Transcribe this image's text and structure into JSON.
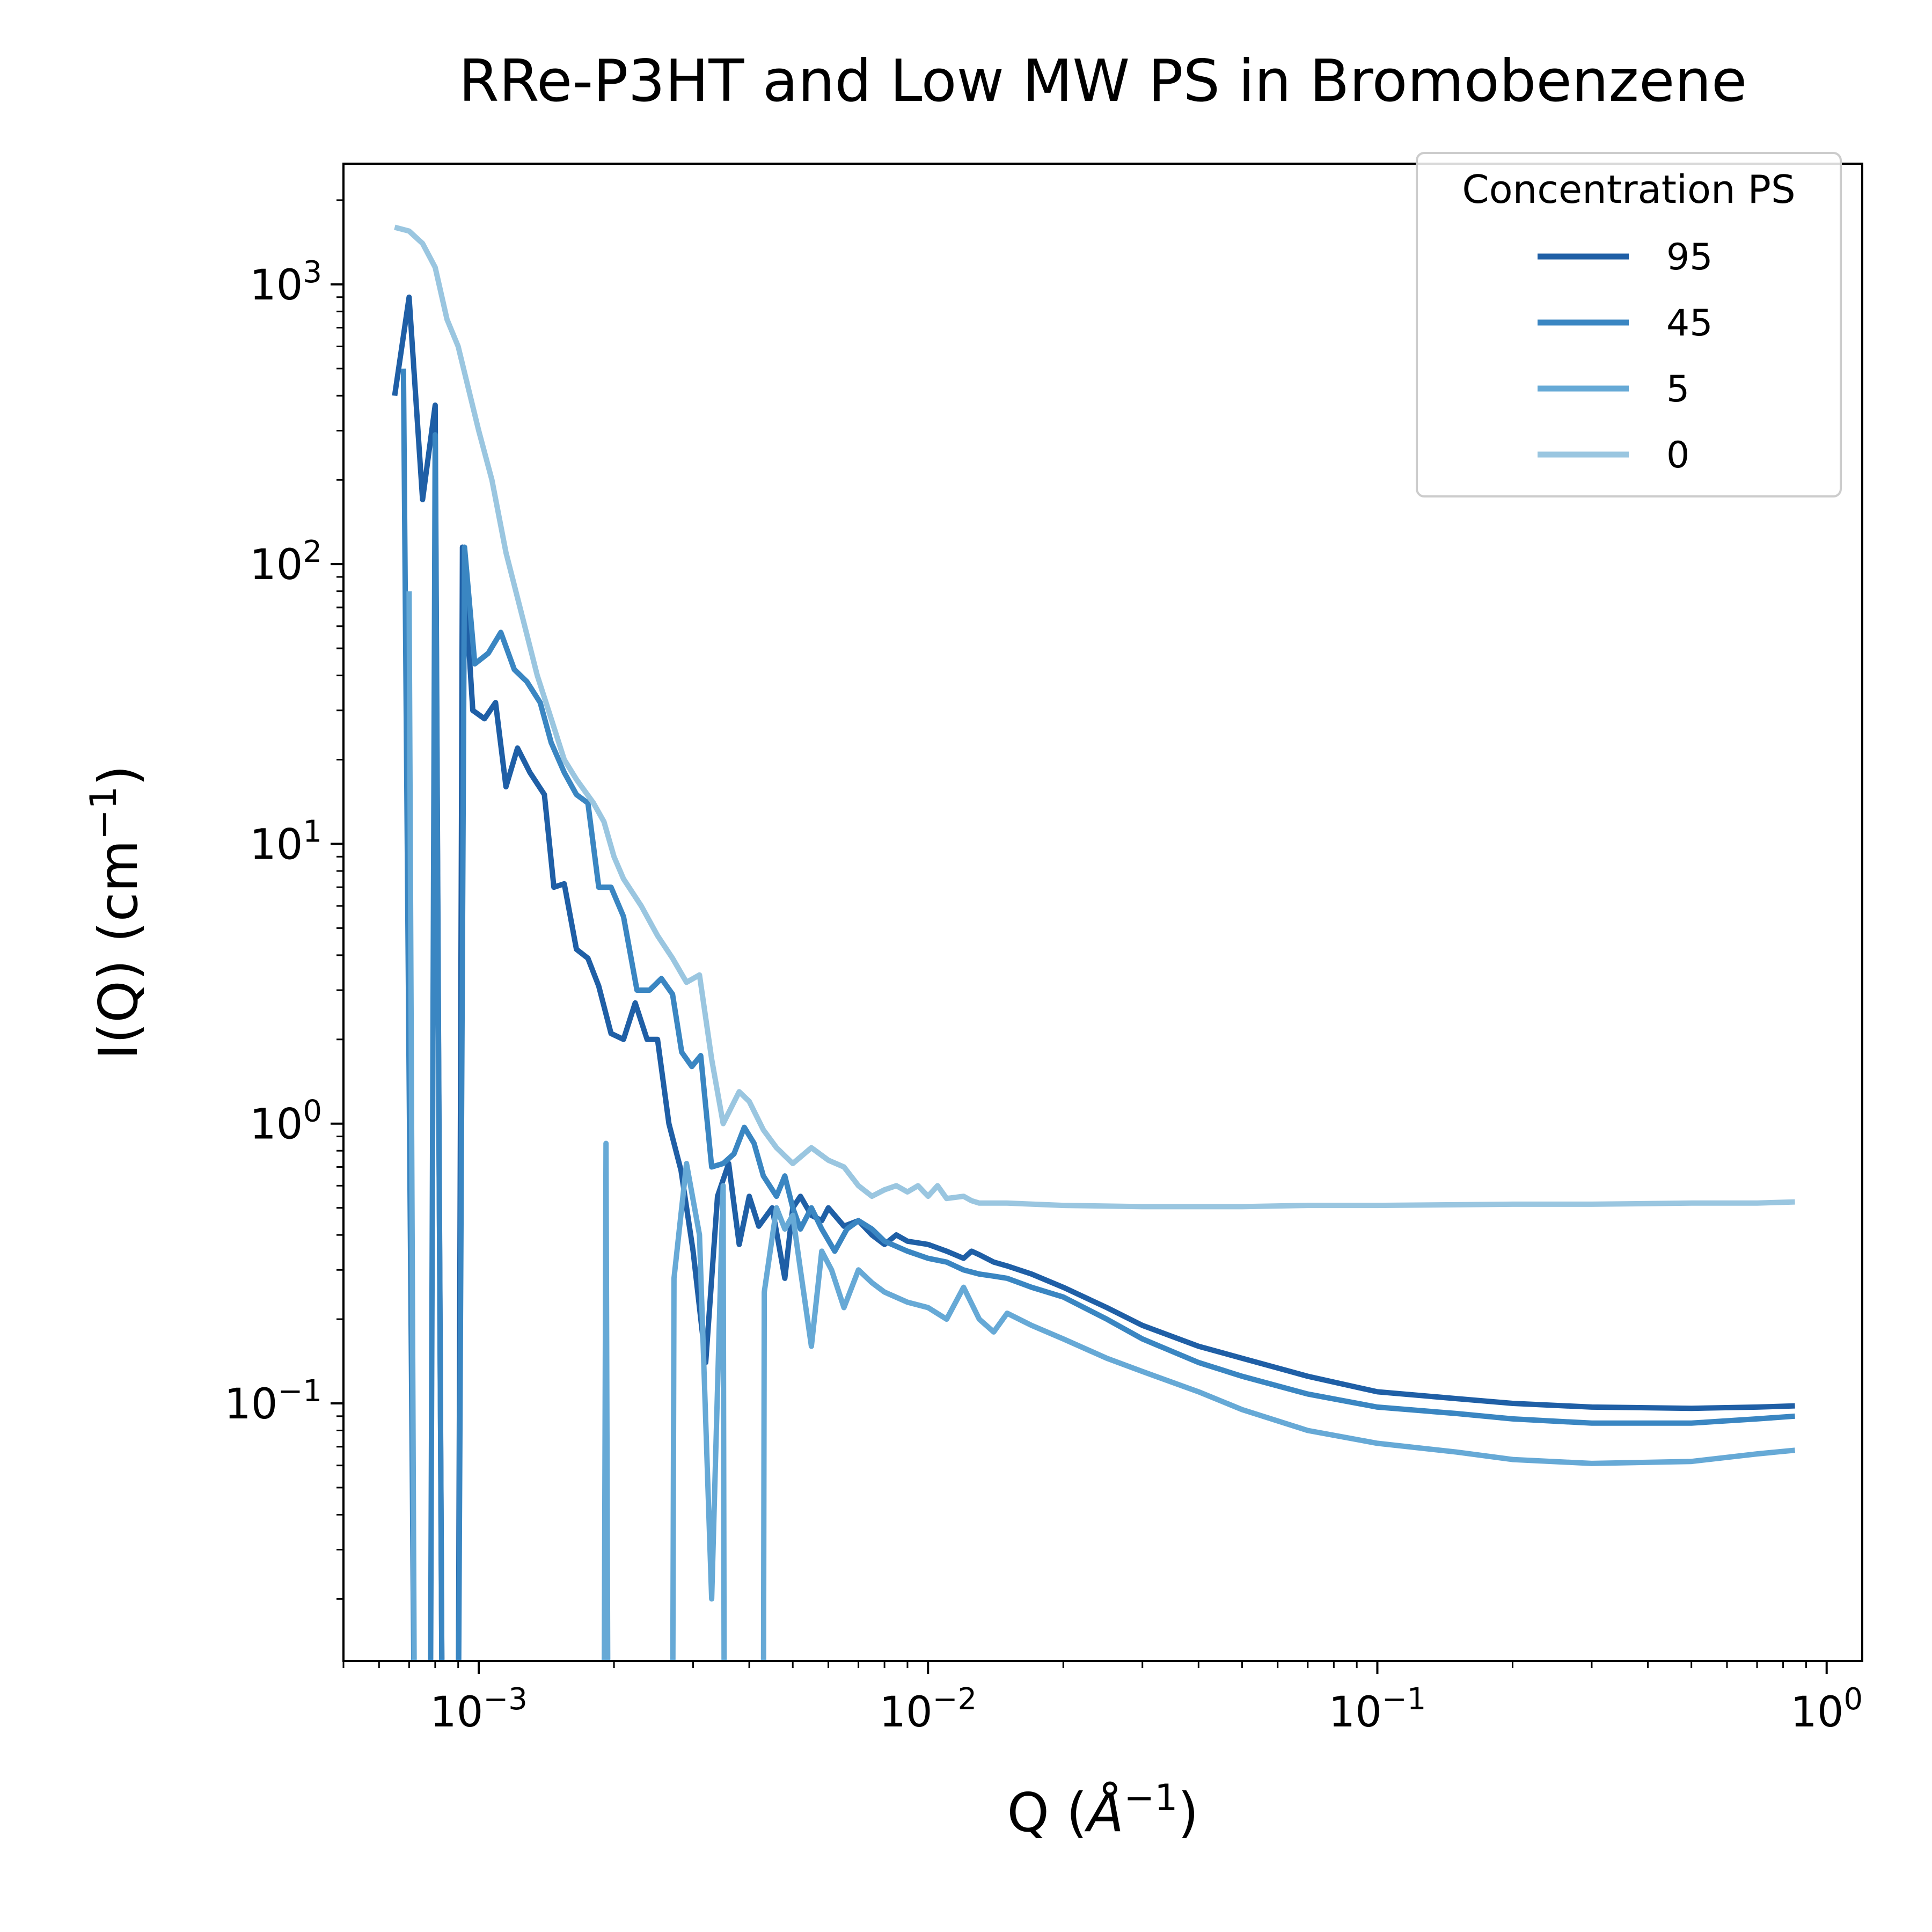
{
  "chart_data": {
    "type": "line",
    "title": "RRe-P3HT and Low MW PS in Bromobenzene",
    "xlabel": {
      "base": "Q (",
      "sym": "Å",
      "exp": "−1",
      "close": ")"
    },
    "ylabel": {
      "base": "I(Q) (cm",
      "exp": "−1",
      "close": ")"
    },
    "xscale": "log",
    "yscale": "log",
    "xlim": [
      0.0005,
      1.2
    ],
    "ylim": [
      0.012,
      2700
    ],
    "x_ticks": [
      {
        "value": 0.001,
        "base": "10",
        "exp": "−3"
      },
      {
        "value": 0.01,
        "base": "10",
        "exp": "−2"
      },
      {
        "value": 0.1,
        "base": "10",
        "exp": "−1"
      },
      {
        "value": 1,
        "base": "10",
        "exp": "0"
      }
    ],
    "y_ticks": [
      {
        "value": 0.1,
        "base": "10",
        "exp": "−1"
      },
      {
        "value": 1,
        "base": "10",
        "exp": "0"
      },
      {
        "value": 10,
        "base": "10",
        "exp": "1"
      },
      {
        "value": 100,
        "base": "10",
        "exp": "2"
      },
      {
        "value": 1000,
        "base": "10",
        "exp": "3"
      }
    ],
    "legend": {
      "title": "Concentration PS",
      "position": "top-right"
    },
    "series": [
      {
        "name": "95",
        "color": "#1f5fa6",
        "points": [
          [
            0.00065,
            400
          ],
          [
            0.0007,
            900
          ],
          [
            0.00075,
            170
          ],
          [
            0.0008,
            370
          ],
          [
            0.00083,
            0.005
          ],
          [
            0.0009,
            0.005
          ],
          [
            0.00092,
            115
          ],
          [
            0.00097,
            30
          ],
          [
            0.00103,
            28
          ],
          [
            0.00109,
            32
          ],
          [
            0.00115,
            16
          ],
          [
            0.00122,
            22
          ],
          [
            0.0013,
            18
          ],
          [
            0.0014,
            15
          ],
          [
            0.00147,
            7
          ],
          [
            0.00155,
            7.2
          ],
          [
            0.00165,
            4.2
          ],
          [
            0.00175,
            3.9
          ],
          [
            0.00185,
            3.1
          ],
          [
            0.00197,
            2.1
          ],
          [
            0.0021,
            2.0
          ],
          [
            0.00223,
            2.7
          ],
          [
            0.00237,
            2.0
          ],
          [
            0.0025,
            2.0
          ],
          [
            0.00265,
            1.0
          ],
          [
            0.00282,
            0.68
          ],
          [
            0.003,
            0.35
          ],
          [
            0.0032,
            0.14
          ],
          [
            0.0034,
            0.55
          ],
          [
            0.0036,
            0.72
          ],
          [
            0.0038,
            0.37
          ],
          [
            0.004,
            0.55
          ],
          [
            0.0042,
            0.43
          ],
          [
            0.0045,
            0.5
          ],
          [
            0.0048,
            0.28
          ],
          [
            0.005,
            0.5
          ],
          [
            0.0052,
            0.55
          ],
          [
            0.0055,
            0.47
          ],
          [
            0.0058,
            0.45
          ],
          [
            0.006,
            0.5
          ],
          [
            0.0065,
            0.43
          ],
          [
            0.007,
            0.45
          ],
          [
            0.0075,
            0.4
          ],
          [
            0.008,
            0.37
          ],
          [
            0.0085,
            0.4
          ],
          [
            0.009,
            0.38
          ],
          [
            0.01,
            0.37
          ],
          [
            0.011,
            0.35
          ],
          [
            0.012,
            0.33
          ],
          [
            0.0125,
            0.35
          ],
          [
            0.013,
            0.34
          ],
          [
            0.014,
            0.32
          ],
          [
            0.015,
            0.31
          ],
          [
            0.017,
            0.29
          ],
          [
            0.02,
            0.26
          ],
          [
            0.025,
            0.22
          ],
          [
            0.03,
            0.19
          ],
          [
            0.04,
            0.16
          ],
          [
            0.05,
            0.145
          ],
          [
            0.07,
            0.125
          ],
          [
            0.1,
            0.11
          ],
          [
            0.15,
            0.104
          ],
          [
            0.2,
            0.1
          ],
          [
            0.3,
            0.097
          ],
          [
            0.5,
            0.096
          ],
          [
            0.7,
            0.097
          ],
          [
            0.85,
            0.098
          ]
        ]
      },
      {
        "name": "45",
        "color": "#3a86c2",
        "points": [
          [
            0.00068,
            500
          ],
          [
            0.00072,
            0.005
          ],
          [
            0.00078,
            0.005
          ],
          [
            0.0008,
            290
          ],
          [
            0.00083,
            0.005
          ],
          [
            0.0009,
            0.005
          ],
          [
            0.00093,
            115
          ],
          [
            0.00098,
            44
          ],
          [
            0.00105,
            48
          ],
          [
            0.00112,
            57
          ],
          [
            0.0012,
            42
          ],
          [
            0.00128,
            38
          ],
          [
            0.00137,
            32
          ],
          [
            0.00145,
            23
          ],
          [
            0.00155,
            18
          ],
          [
            0.00165,
            15
          ],
          [
            0.00175,
            14
          ],
          [
            0.00185,
            7
          ],
          [
            0.00197,
            7
          ],
          [
            0.0021,
            5.5
          ],
          [
            0.00225,
            3.0
          ],
          [
            0.0024,
            3.0
          ],
          [
            0.00255,
            3.3
          ],
          [
            0.0027,
            2.9
          ],
          [
            0.00283,
            1.8
          ],
          [
            0.00298,
            1.6
          ],
          [
            0.00312,
            1.75
          ],
          [
            0.0033,
            0.7
          ],
          [
            0.0035,
            0.72
          ],
          [
            0.0037,
            0.78
          ],
          [
            0.0039,
            0.97
          ],
          [
            0.0041,
            0.85
          ],
          [
            0.0043,
            0.65
          ],
          [
            0.0046,
            0.55
          ],
          [
            0.0048,
            0.65
          ],
          [
            0.005,
            0.5
          ],
          [
            0.0052,
            0.42
          ],
          [
            0.0055,
            0.5
          ],
          [
            0.0058,
            0.42
          ],
          [
            0.0062,
            0.35
          ],
          [
            0.0066,
            0.42
          ],
          [
            0.007,
            0.45
          ],
          [
            0.0075,
            0.42
          ],
          [
            0.008,
            0.38
          ],
          [
            0.009,
            0.35
          ],
          [
            0.01,
            0.33
          ],
          [
            0.011,
            0.32
          ],
          [
            0.012,
            0.3
          ],
          [
            0.013,
            0.29
          ],
          [
            0.014,
            0.285
          ],
          [
            0.015,
            0.28
          ],
          [
            0.017,
            0.26
          ],
          [
            0.02,
            0.24
          ],
          [
            0.025,
            0.2
          ],
          [
            0.03,
            0.17
          ],
          [
            0.04,
            0.14
          ],
          [
            0.05,
            0.125
          ],
          [
            0.07,
            0.108
          ],
          [
            0.1,
            0.097
          ],
          [
            0.15,
            0.092
          ],
          [
            0.2,
            0.088
          ],
          [
            0.3,
            0.085
          ],
          [
            0.5,
            0.085
          ],
          [
            0.7,
            0.088
          ],
          [
            0.85,
            0.09
          ]
        ]
      },
      {
        "name": "5",
        "color": "#66a9d6",
        "points": [
          [
            0.0007,
            80
          ],
          [
            0.00072,
            0.005
          ],
          [
            0.0019,
            0.005
          ],
          [
            0.00192,
            0.85
          ],
          [
            0.00194,
            0.005
          ],
          [
            0.0027,
            0.005
          ],
          [
            0.00272,
            0.28
          ],
          [
            0.0029,
            0.72
          ],
          [
            0.0031,
            0.4
          ],
          [
            0.0033,
            0.02
          ],
          [
            0.0035,
            0.6
          ],
          [
            0.00352,
            0.005
          ],
          [
            0.0043,
            0.005
          ],
          [
            0.00432,
            0.25
          ],
          [
            0.0046,
            0.5
          ],
          [
            0.0048,
            0.42
          ],
          [
            0.005,
            0.47
          ],
          [
            0.0052,
            0.3
          ],
          [
            0.0055,
            0.16
          ],
          [
            0.0058,
            0.35
          ],
          [
            0.0061,
            0.3
          ],
          [
            0.0065,
            0.22
          ],
          [
            0.007,
            0.3
          ],
          [
            0.0075,
            0.27
          ],
          [
            0.008,
            0.25
          ],
          [
            0.009,
            0.23
          ],
          [
            0.01,
            0.22
          ],
          [
            0.011,
            0.2
          ],
          [
            0.012,
            0.26
          ],
          [
            0.013,
            0.2
          ],
          [
            0.014,
            0.18
          ],
          [
            0.015,
            0.21
          ],
          [
            0.017,
            0.19
          ],
          [
            0.02,
            0.17
          ],
          [
            0.025,
            0.145
          ],
          [
            0.03,
            0.13
          ],
          [
            0.04,
            0.11
          ],
          [
            0.05,
            0.095
          ],
          [
            0.07,
            0.08
          ],
          [
            0.1,
            0.072
          ],
          [
            0.15,
            0.067
          ],
          [
            0.2,
            0.063
          ],
          [
            0.3,
            0.061
          ],
          [
            0.5,
            0.062
          ],
          [
            0.7,
            0.066
          ],
          [
            0.85,
            0.068
          ]
        ]
      },
      {
        "name": "0",
        "color": "#9ac6e0",
        "points": [
          [
            0.00065,
            1600
          ],
          [
            0.0007,
            1550
          ],
          [
            0.00075,
            1400
          ],
          [
            0.0008,
            1150
          ],
          [
            0.00085,
            750
          ],
          [
            0.0009,
            600
          ],
          [
            0.00095,
            420
          ],
          [
            0.001,
            300
          ],
          [
            0.00107,
            200
          ],
          [
            0.00115,
            110
          ],
          [
            0.00125,
            65
          ],
          [
            0.00135,
            40
          ],
          [
            0.00145,
            28
          ],
          [
            0.00155,
            20
          ],
          [
            0.00165,
            17
          ],
          [
            0.0018,
            14
          ],
          [
            0.0019,
            12
          ],
          [
            0.002,
            9
          ],
          [
            0.0021,
            7.5
          ],
          [
            0.0023,
            6.0
          ],
          [
            0.0025,
            4.7
          ],
          [
            0.0027,
            3.9
          ],
          [
            0.0029,
            3.2
          ],
          [
            0.0031,
            3.4
          ],
          [
            0.0033,
            1.7
          ],
          [
            0.0035,
            1.0
          ],
          [
            0.0038,
            1.3
          ],
          [
            0.004,
            1.2
          ],
          [
            0.0043,
            0.95
          ],
          [
            0.0046,
            0.82
          ],
          [
            0.005,
            0.72
          ],
          [
            0.0055,
            0.82
          ],
          [
            0.006,
            0.74
          ],
          [
            0.0065,
            0.7
          ],
          [
            0.007,
            0.6
          ],
          [
            0.0075,
            0.55
          ],
          [
            0.008,
            0.58
          ],
          [
            0.0085,
            0.6
          ],
          [
            0.009,
            0.57
          ],
          [
            0.0095,
            0.6
          ],
          [
            0.01,
            0.55
          ],
          [
            0.0105,
            0.6
          ],
          [
            0.011,
            0.54
          ],
          [
            0.012,
            0.55
          ],
          [
            0.0125,
            0.53
          ],
          [
            0.013,
            0.52
          ],
          [
            0.015,
            0.52
          ],
          [
            0.02,
            0.51
          ],
          [
            0.03,
            0.505
          ],
          [
            0.05,
            0.505
          ],
          [
            0.07,
            0.51
          ],
          [
            0.1,
            0.51
          ],
          [
            0.2,
            0.515
          ],
          [
            0.3,
            0.515
          ],
          [
            0.5,
            0.52
          ],
          [
            0.7,
            0.52
          ],
          [
            0.85,
            0.525
          ]
        ]
      }
    ]
  }
}
